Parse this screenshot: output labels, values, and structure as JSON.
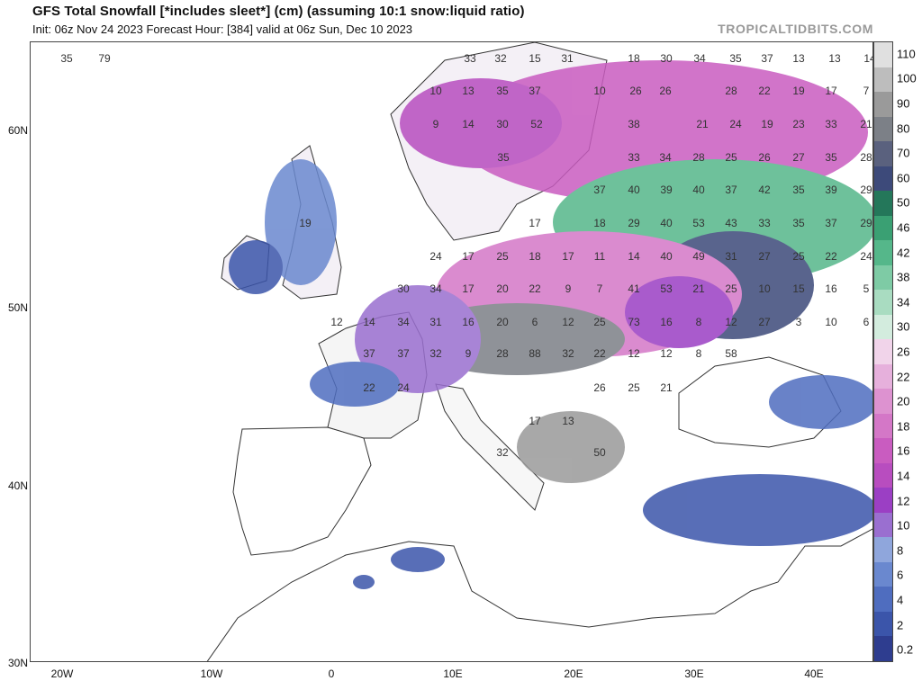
{
  "header": {
    "title": "GFS Total Snowfall [*includes sleet*] (cm) (assuming 10:1 snow:liquid ratio)",
    "subtitle": "Init: 06z Nov 24 2023   Forecast Hour: [384]   valid at 06z Sun, Dec 10 2023",
    "brand": "TROPICALTIDBITS.COM"
  },
  "axes": {
    "lat_labels": [
      "60N",
      "50N",
      "40N",
      "30N"
    ],
    "lon_labels": [
      "20W",
      "10W",
      "0",
      "10E",
      "20E",
      "30E",
      "40E"
    ]
  },
  "legend": {
    "labels": [
      "0.2",
      "2",
      "4",
      "6",
      "8",
      "10",
      "12",
      "14",
      "16",
      "18",
      "20",
      "22",
      "26",
      "30",
      "34",
      "38",
      "42",
      "46",
      "50",
      "60",
      "70",
      "80",
      "90",
      "100",
      "110"
    ],
    "colors": [
      "#2e3d8f",
      "#3b55aa",
      "#4f6dbf",
      "#6a88cf",
      "#8fa6dc",
      "#9a6fd0",
      "#9b3fc4",
      "#b84dbf",
      "#c95cc0",
      "#d477c7",
      "#dd92d0",
      "#e6b0dc",
      "#f1d4ea",
      "#d3ecde",
      "#a9dcc1",
      "#7ecba5",
      "#55b78a",
      "#3aa073",
      "#24775a",
      "#3d4a7a",
      "#5a617e",
      "#7c8087",
      "#9a9a9a",
      "#bdbdbd",
      "#e0e0e0"
    ]
  },
  "values": [
    "35",
    "79",
    "33",
    "32",
    "15",
    "31",
    "18",
    "30",
    "34",
    "35",
    "37",
    "13",
    "13",
    "14",
    "10",
    "13",
    "35",
    "37",
    "10",
    "26",
    "26",
    "28",
    "22",
    "19",
    "17",
    "7",
    "9",
    "14",
    "30",
    "52",
    "38",
    "21",
    "24",
    "19",
    "23",
    "33",
    "21",
    "35",
    "33",
    "34",
    "28",
    "25",
    "26",
    "27",
    "35",
    "28",
    "37",
    "40",
    "39",
    "40",
    "37",
    "42",
    "35",
    "39",
    "29",
    "17",
    "18",
    "29",
    "40",
    "53",
    "43",
    "33",
    "35",
    "37",
    "29",
    "19",
    "24",
    "17",
    "25",
    "18",
    "17",
    "11",
    "14",
    "40",
    "49",
    "31",
    "27",
    "25",
    "22",
    "24",
    "30",
    "34",
    "17",
    "20",
    "22",
    "9",
    "7",
    "41",
    "53",
    "21",
    "25",
    "10",
    "15",
    "16",
    "5",
    "12",
    "14",
    "34",
    "31",
    "16",
    "20",
    "6",
    "12",
    "25",
    "73",
    "16",
    "8",
    "12",
    "27",
    "3",
    "10",
    "6",
    "37",
    "37",
    "32",
    "9",
    "28",
    "88",
    "32",
    "22",
    "12",
    "12",
    "8",
    "58",
    "22",
    "24",
    "26",
    "25",
    "21",
    "17",
    "13",
    "32",
    "50"
  ]
}
